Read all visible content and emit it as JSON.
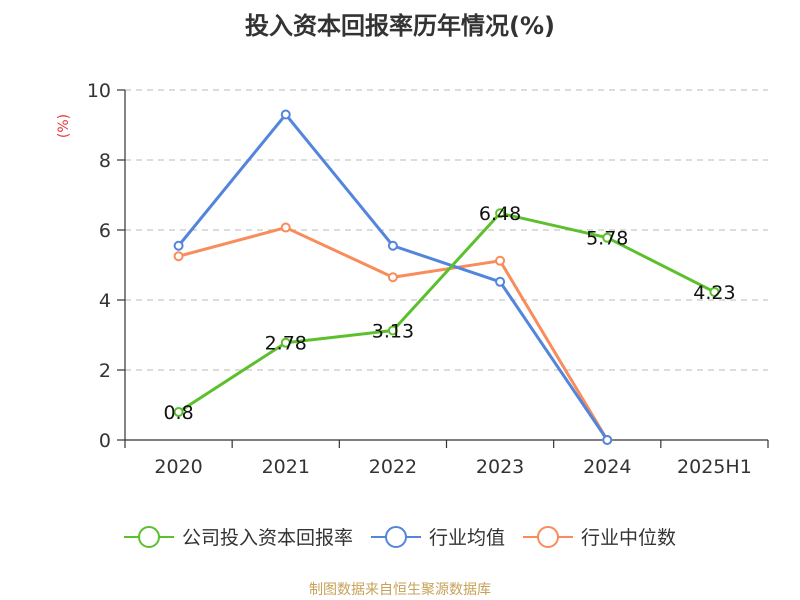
{
  "title": "投入资本回报率历年情况(%)",
  "source": "制图数据来自恒生聚源数据库",
  "chart_data": {
    "type": "line",
    "title": "投入资本回报率历年情况(%)",
    "ylabel": "(%)",
    "categories": [
      "2020",
      "2021",
      "2022",
      "2023",
      "2024",
      "2025H1"
    ],
    "ylim": [
      0,
      10
    ],
    "yticks": [
      0,
      2,
      4,
      6,
      8,
      10
    ],
    "grid": true,
    "legend_position": "bottom",
    "series": [
      {
        "name": "公司投入资本回报率",
        "color": "#5cc02d",
        "values": [
          0.8,
          2.78,
          3.13,
          6.48,
          5.78,
          4.23
        ],
        "labels": [
          "0.8",
          "2.78",
          "3.13",
          "6.48",
          "5.78",
          "4.23"
        ]
      },
      {
        "name": "行业均值",
        "color": "#5285db",
        "values": [
          5.55,
          9.3,
          5.55,
          4.52,
          0.0,
          null
        ]
      },
      {
        "name": "行业中位数",
        "color": "#f88c5b",
        "values": [
          5.25,
          6.07,
          4.65,
          5.12,
          0.0,
          null
        ]
      }
    ]
  }
}
